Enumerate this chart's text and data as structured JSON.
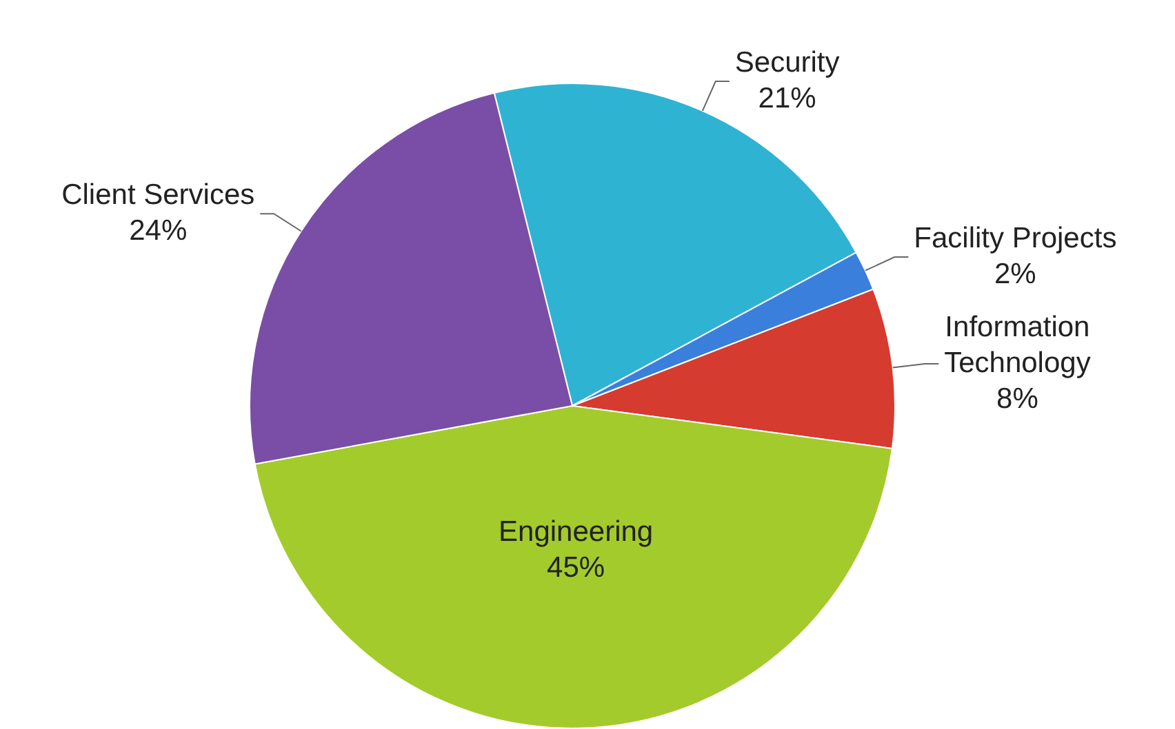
{
  "chart_data": {
    "type": "pie",
    "categories": [
      "Security",
      "Facility Projects",
      "Information Technology",
      "Engineering",
      "Client Services"
    ],
    "values": [
      21,
      2,
      8,
      45,
      24
    ],
    "colors": [
      "#2fb3d3",
      "#3a7fdc",
      "#d63b2f",
      "#a3cb2c",
      "#7a4ea6"
    ],
    "value_labels": [
      "21%",
      "2%",
      "8%",
      "45%",
      "24%"
    ],
    "legend": false
  }
}
